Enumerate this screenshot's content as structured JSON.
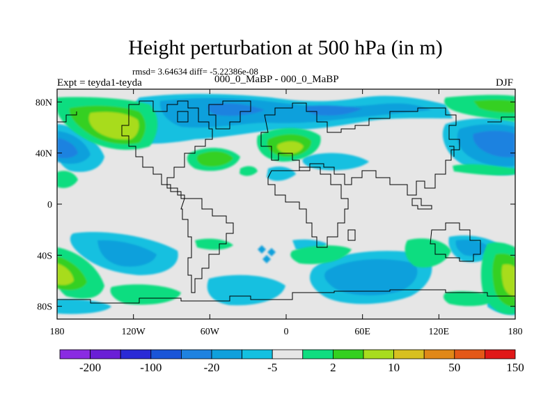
{
  "title": "Height perturbation at 500 hPa (in m)",
  "stats": "rmsd= 3.64634 diff= -5.22386e-08",
  "expt": "Expt = teyda1-teyda",
  "case": "000_0_MaBP - 000_0_MaBP",
  "season": "DJF",
  "y_ticks": [
    {
      "value": 80,
      "label": "80N"
    },
    {
      "value": 40,
      "label": "40N"
    },
    {
      "value": 0,
      "label": "0"
    },
    {
      "value": -40,
      "label": "40S"
    },
    {
      "value": -80,
      "label": "80S"
    }
  ],
  "x_ticks": [
    {
      "value": -180,
      "label": "180"
    },
    {
      "value": -120,
      "label": "120W"
    },
    {
      "value": -60,
      "label": "60W"
    },
    {
      "value": 0,
      "label": "0"
    },
    {
      "value": 60,
      "label": "60E"
    },
    {
      "value": 120,
      "label": "120E"
    },
    {
      "value": 180,
      "label": "180"
    }
  ],
  "colorbar": {
    "colors": [
      "#8a2be2",
      "#6a1fd6",
      "#2a2ad6",
      "#1a55d8",
      "#1e82e0",
      "#10a0dc",
      "#14c0e0",
      "#e6e6e6",
      "#10dd80",
      "#34d020",
      "#a8dc1e",
      "#d8c020",
      "#e08818",
      "#e45818",
      "#e01818"
    ],
    "labels": [
      {
        "after": 1,
        "text": "-200"
      },
      {
        "after": 3,
        "text": "-100"
      },
      {
        "after": 5,
        "text": "-20"
      },
      {
        "after": 7,
        "text": "-5"
      },
      {
        "after": 9,
        "text": "2"
      },
      {
        "after": 11,
        "text": "10"
      },
      {
        "after": 13,
        "text": "50"
      },
      {
        "after": 15,
        "text": "150"
      }
    ]
  }
}
